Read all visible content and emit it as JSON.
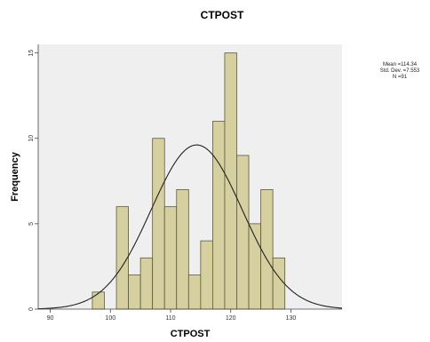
{
  "chart_data": {
    "type": "bar",
    "title": "CTPOST",
    "xlabel": "CTPOST",
    "ylabel": "Frequency",
    "xlim": [
      88,
      138.5
    ],
    "ylim": [
      0,
      15.5
    ],
    "x_ticks": [
      90,
      100,
      110,
      120,
      130
    ],
    "x_tick_labels": [
      "90",
      "100",
      "110",
      "120",
      "130"
    ],
    "y_ticks": [
      0,
      5,
      10,
      15
    ],
    "y_tick_labels": [
      "0",
      "5",
      "10",
      "15"
    ],
    "bin_width": 2,
    "bins": [
      {
        "x0": 97,
        "x1": 99,
        "count": 1
      },
      {
        "x0": 99,
        "x1": 101,
        "count": 0
      },
      {
        "x0": 101,
        "x1": 103,
        "count": 6
      },
      {
        "x0": 103,
        "x1": 105,
        "count": 2
      },
      {
        "x0": 105,
        "x1": 107,
        "count": 3
      },
      {
        "x0": 107,
        "x1": 109,
        "count": 10
      },
      {
        "x0": 109,
        "x1": 111,
        "count": 6
      },
      {
        "x0": 111,
        "x1": 113,
        "count": 7
      },
      {
        "x0": 113,
        "x1": 115,
        "count": 2
      },
      {
        "x0": 115,
        "x1": 117,
        "count": 4
      },
      {
        "x0": 117,
        "x1": 119,
        "count": 11
      },
      {
        "x0": 119,
        "x1": 121,
        "count": 15
      },
      {
        "x0": 121,
        "x1": 123,
        "count": 9
      },
      {
        "x0": 123,
        "x1": 125,
        "count": 5
      },
      {
        "x0": 125,
        "x1": 127,
        "count": 7
      },
      {
        "x0": 127,
        "x1": 129,
        "count": 3
      }
    ],
    "normal_curve": {
      "mean": 114.34,
      "sd": 7.553,
      "n": 91
    },
    "grid": false,
    "legend": "top-right"
  },
  "stats": {
    "mean_label": "Mean =114.34",
    "sd_label": "Std. Dev. =7.553",
    "n_label": "N =91"
  },
  "colors": {
    "plot_background": "#efefef",
    "bar_fill": "#d6cfa0",
    "bar_stroke": "#5a5a3a",
    "curve": "#222222",
    "axis": "#444444"
  }
}
